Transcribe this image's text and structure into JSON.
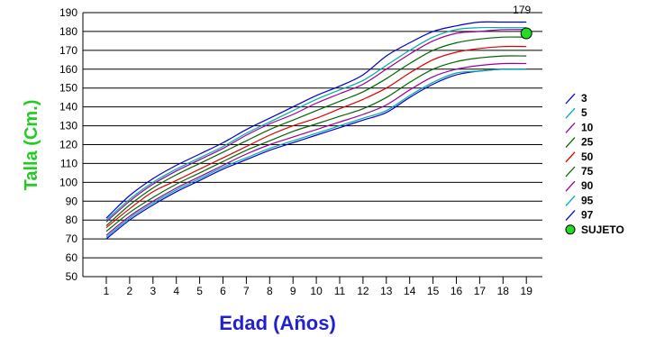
{
  "chart_data": {
    "type": "line",
    "title": "",
    "xlabel": "Edad (Años)",
    "ylabel": "Talla (Cm.)",
    "xlim": [
      0,
      19
    ],
    "ylim": [
      50,
      190
    ],
    "x_ticks": [
      1,
      2,
      3,
      4,
      5,
      6,
      7,
      8,
      9,
      10,
      11,
      12,
      13,
      14,
      15,
      16,
      17,
      18,
      19
    ],
    "y_ticks": [
      50,
      60,
      70,
      80,
      90,
      100,
      110,
      120,
      130,
      140,
      150,
      160,
      170,
      180,
      190
    ],
    "grid": {
      "horizontal": true,
      "vertical": false
    },
    "legend_position": "right",
    "xlabel_color": "#2222cc",
    "ylabel_color": "#22cc22",
    "x": [
      1,
      2,
      3,
      4,
      5,
      6,
      7,
      8,
      9,
      10,
      11,
      12,
      13,
      14,
      15,
      16,
      17,
      18,
      19
    ],
    "series": [
      {
        "name": "3",
        "color": "#0000cc",
        "values": [
          70,
          80,
          88,
          95,
          101,
          107,
          112,
          117,
          121,
          125,
          129,
          133,
          137,
          145,
          152,
          157,
          159,
          160,
          160
        ]
      },
      {
        "name": "5",
        "color": "#00aaaa",
        "values": [
          71,
          81,
          89,
          96,
          102,
          108,
          113,
          118,
          122,
          126,
          130,
          134,
          138,
          146,
          153,
          158,
          159,
          160,
          160
        ]
      },
      {
        "name": "10",
        "color": "#990099",
        "values": [
          72,
          82,
          90,
          97,
          103,
          109,
          115,
          120,
          124,
          128,
          132,
          136,
          141,
          149,
          156,
          160,
          162,
          163,
          163
        ]
      },
      {
        "name": "25",
        "color": "#006600",
        "values": [
          74,
          84,
          92,
          99,
          105,
          111,
          117,
          122,
          127,
          131,
          135,
          139,
          145,
          153,
          160,
          164,
          166,
          167,
          167
        ]
      },
      {
        "name": "50",
        "color": "#dd0000",
        "values": [
          76,
          86,
          95,
          101,
          107,
          113,
          119,
          125,
          130,
          134,
          139,
          144,
          150,
          158,
          165,
          169,
          171,
          172,
          172
        ]
      },
      {
        "name": "75",
        "color": "#006600",
        "values": [
          77,
          88,
          97,
          104,
          110,
          116,
          122,
          128,
          133,
          138,
          143,
          148,
          155,
          163,
          170,
          174,
          176,
          177,
          177
        ]
      },
      {
        "name": "90",
        "color": "#990099",
        "values": [
          79,
          90,
          99,
          106,
          112,
          118,
          125,
          131,
          136,
          142,
          147,
          152,
          160,
          168,
          175,
          179,
          180,
          181,
          181
        ]
      },
      {
        "name": "95",
        "color": "#00aaaa",
        "values": [
          80,
          91,
          100,
          107,
          113,
          119,
          126,
          132,
          138,
          144,
          149,
          154,
          162,
          170,
          177,
          181,
          182,
          182,
          182
        ]
      },
      {
        "name": "97",
        "color": "#0000cc",
        "values": [
          81,
          93,
          102,
          109,
          115,
          121,
          128,
          134,
          140,
          146,
          151,
          157,
          167,
          174,
          180,
          183,
          185,
          185,
          185
        ]
      }
    ],
    "subject": {
      "name": "SUJETO",
      "x": 19,
      "y": 179,
      "label": "179",
      "color": "#22dd22"
    }
  }
}
